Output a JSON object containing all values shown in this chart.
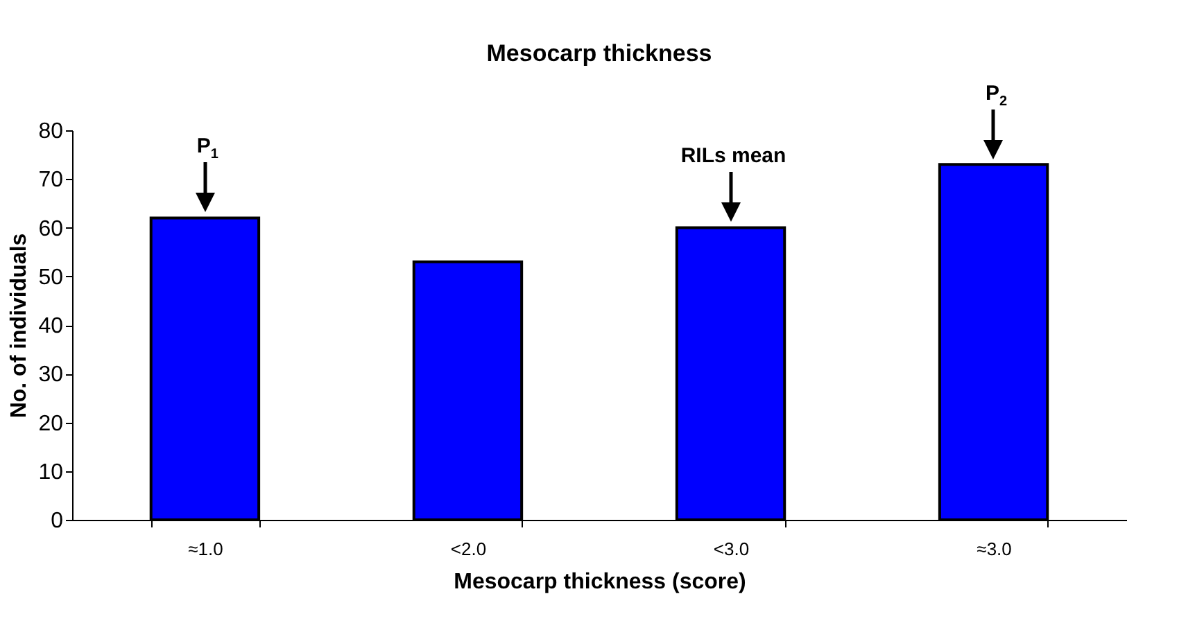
{
  "chart_data": {
    "type": "bar",
    "title": "Mesocarp thickness",
    "xlabel": "Mesocarp thickness (score)",
    "ylabel": "No. of individuals",
    "categories": [
      "≈1.0",
      "<2.0",
      "<3.0",
      "≈3.0"
    ],
    "values": [
      62,
      53,
      60,
      73
    ],
    "color": "#0000ff",
    "ylim": [
      0,
      80
    ],
    "yticks": [
      0,
      10,
      20,
      30,
      40,
      50,
      60,
      70,
      80
    ],
    "grid": false,
    "annotations": [
      {
        "text": "P$_{1}$",
        "x": "≈1.0",
        "y": 62
      },
      {
        "text": "RILs mean",
        "x": "<3.0",
        "y": 60
      },
      {
        "text": "P$_{2}$",
        "x": "≈3.0",
        "y": 73
      }
    ]
  }
}
